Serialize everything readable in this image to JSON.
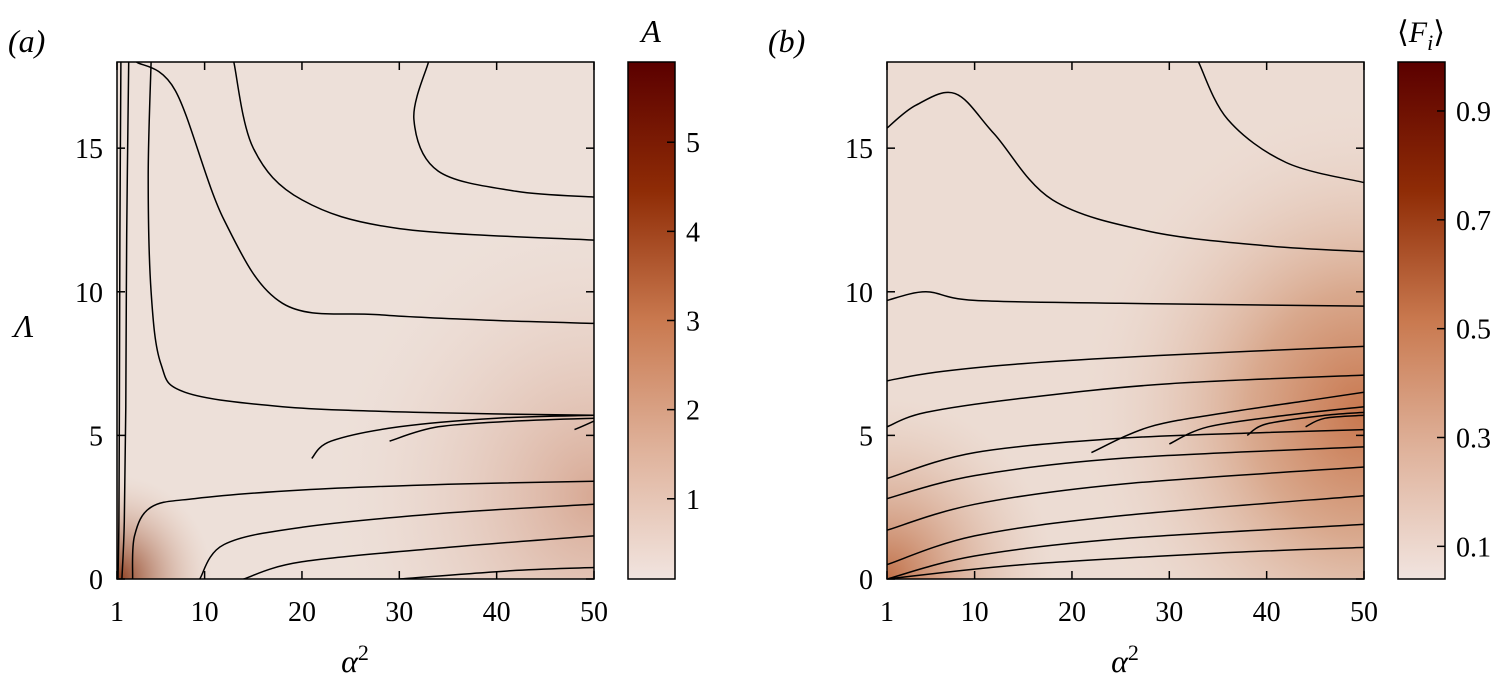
{
  "chart_data": [
    {
      "type": "contour",
      "panel_label": "(a)",
      "xlabel": "α²",
      "ylabel": "Λ",
      "xlim": [
        1,
        50
      ],
      "ylim": [
        0,
        18
      ],
      "x_ticks": [
        "1",
        "10",
        "20",
        "30",
        "40",
        "50"
      ],
      "x_tick_values": [
        1,
        10,
        20,
        30,
        40,
        50
      ],
      "y_ticks": [
        "0",
        "5",
        "10",
        "15"
      ],
      "y_tick_values": [
        0,
        5,
        10,
        15
      ],
      "colorbar": {
        "label": "A",
        "range": [
          0.1,
          5.9
        ],
        "ticks": [
          "1",
          "2",
          "3",
          "4",
          "5"
        ],
        "tick_values": [
          1,
          2,
          3,
          4,
          5
        ]
      },
      "contours": [
        [
          [
            1.4,
            18
          ],
          [
            1.3,
            12
          ],
          [
            1.25,
            6
          ],
          [
            1.2,
            2
          ],
          [
            1.1,
            0
          ]
        ],
        [
          [
            2.2,
            18
          ],
          [
            2.0,
            12
          ],
          [
            1.9,
            6
          ],
          [
            1.75,
            2
          ],
          [
            1.5,
            0
          ]
        ],
        [
          [
            4.5,
            18
          ],
          [
            4.2,
            14
          ],
          [
            4.5,
            10
          ],
          [
            5.5,
            7.5
          ],
          [
            8,
            6.5
          ],
          [
            18,
            6.0
          ],
          [
            32,
            5.8
          ],
          [
            50,
            5.7
          ]
        ],
        [
          [
            2.6,
            0
          ],
          [
            2.8,
            1.5
          ],
          [
            4.5,
            2.5
          ],
          [
            9,
            2.8
          ],
          [
            20,
            3.1
          ],
          [
            35,
            3.3
          ],
          [
            50,
            3.4
          ]
        ],
        [
          [
            9.5,
            0
          ],
          [
            12,
            1.2
          ],
          [
            20,
            1.8
          ],
          [
            35,
            2.3
          ],
          [
            50,
            2.6
          ]
        ],
        [
          [
            14,
            0
          ],
          [
            20,
            0.6
          ],
          [
            35,
            1.1
          ],
          [
            50,
            1.5
          ]
        ],
        [
          [
            30,
            0
          ],
          [
            42,
            0.3
          ],
          [
            50,
            0.4
          ]
        ],
        [
          [
            21,
            4.2
          ],
          [
            23,
            4.8
          ],
          [
            30,
            5.3
          ],
          [
            40,
            5.6
          ],
          [
            50,
            5.7
          ]
        ],
        [
          [
            29,
            4.8
          ],
          [
            34,
            5.3
          ],
          [
            42,
            5.5
          ],
          [
            50,
            5.6
          ]
        ],
        [
          [
            48,
            5.2
          ],
          [
            50,
            5.5
          ]
        ],
        [
          [
            3,
            18
          ],
          [
            7,
            17
          ],
          [
            12,
            12.5
          ],
          [
            18,
            9.6
          ],
          [
            28,
            9.2
          ],
          [
            40,
            9.0
          ],
          [
            50,
            8.9
          ]
        ],
        [
          [
            13,
            18
          ],
          [
            15,
            15
          ],
          [
            20,
            13.2
          ],
          [
            30,
            12.2
          ],
          [
            50,
            11.8
          ]
        ],
        [
          [
            33,
            18
          ],
          [
            31.5,
            16
          ],
          [
            34,
            14.2
          ],
          [
            42,
            13.5
          ],
          [
            50,
            13.3
          ]
        ]
      ]
    },
    {
      "type": "contour",
      "panel_label": "(b)",
      "xlabel": "α²",
      "ylabel": "",
      "xlim": [
        1,
        50
      ],
      "ylim": [
        0,
        18
      ],
      "x_ticks": [
        "1",
        "10",
        "20",
        "30",
        "40",
        "50"
      ],
      "x_tick_values": [
        1,
        10,
        20,
        30,
        40,
        50
      ],
      "y_ticks": [
        "0",
        "5",
        "10",
        "15"
      ],
      "y_tick_values": [
        0,
        5,
        10,
        15
      ],
      "colorbar": {
        "label": "⟨F_i⟩",
        "range": [
          0.04,
          0.99
        ],
        "ticks": [
          "0.1",
          "0.3",
          "0.5",
          "0.7",
          "0.9"
        ],
        "tick_values": [
          0.1,
          0.3,
          0.5,
          0.7,
          0.9
        ]
      },
      "contours": [
        [
          [
            1,
            15.7
          ],
          [
            4,
            16.5
          ],
          [
            8,
            16.9
          ],
          [
            12,
            15.5
          ],
          [
            18,
            13.2
          ],
          [
            28,
            12.1
          ],
          [
            40,
            11.6
          ],
          [
            50,
            11.4
          ]
        ],
        [
          [
            33,
            18
          ],
          [
            36,
            16
          ],
          [
            42,
            14.5
          ],
          [
            50,
            13.8
          ]
        ],
        [
          [
            1,
            9.7
          ],
          [
            5,
            10
          ],
          [
            10,
            9.7
          ],
          [
            25,
            9.6
          ],
          [
            50,
            9.5
          ]
        ],
        [
          [
            1,
            6.9
          ],
          [
            6,
            7.2
          ],
          [
            15,
            7.5
          ],
          [
            30,
            7.8
          ],
          [
            50,
            8.1
          ]
        ],
        [
          [
            1,
            5.3
          ],
          [
            5,
            5.8
          ],
          [
            15,
            6.3
          ],
          [
            30,
            6.8
          ],
          [
            50,
            7.1
          ]
        ],
        [
          [
            1,
            3.5
          ],
          [
            10,
            4.4
          ],
          [
            25,
            4.9
          ],
          [
            40,
            5.1
          ],
          [
            50,
            5.2
          ]
        ],
        [
          [
            1,
            2.8
          ],
          [
            10,
            3.6
          ],
          [
            25,
            4.2
          ],
          [
            50,
            4.6
          ]
        ],
        [
          [
            1,
            1.7
          ],
          [
            10,
            2.6
          ],
          [
            25,
            3.3
          ],
          [
            50,
            3.9
          ]
        ],
        [
          [
            1,
            0.5
          ],
          [
            10,
            1.5
          ],
          [
            25,
            2.2
          ],
          [
            50,
            2.9
          ]
        ],
        [
          [
            1,
            0
          ],
          [
            10,
            0.8
          ],
          [
            25,
            1.4
          ],
          [
            50,
            1.9
          ]
        ],
        [
          [
            1,
            0
          ],
          [
            15,
            0.5
          ],
          [
            35,
            0.9
          ],
          [
            50,
            1.1
          ]
        ],
        [
          [
            22,
            4.4
          ],
          [
            28,
            5.3
          ],
          [
            36,
            5.8
          ],
          [
            44,
            6.2
          ],
          [
            50,
            6.5
          ]
        ],
        [
          [
            30,
            4.7
          ],
          [
            34,
            5.3
          ],
          [
            42,
            5.7
          ],
          [
            50,
            6.0
          ]
        ],
        [
          [
            38,
            5.0
          ],
          [
            40,
            5.4
          ],
          [
            46,
            5.7
          ],
          [
            50,
            5.8
          ]
        ],
        [
          [
            44,
            5.3
          ],
          [
            46,
            5.6
          ],
          [
            50,
            5.7
          ]
        ]
      ]
    }
  ],
  "colors": {
    "low": "#f1e4df",
    "mid": "#cf7c55",
    "high": "#5b0000",
    "contour_line": "#000000"
  }
}
